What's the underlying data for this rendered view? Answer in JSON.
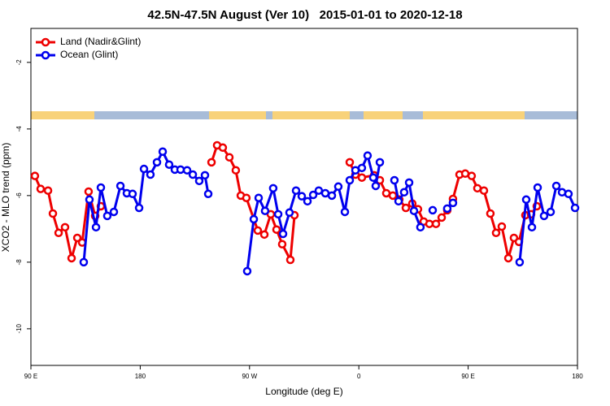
{
  "chart_data": {
    "type": "line",
    "title": "42.5N-47.5N August (Ver 10)   2015-01-01 to 2020-12-18",
    "x_label": "Longitude (deg E)",
    "y_label": "XCO2 - MLO trend (ppm)",
    "xlim": [
      90,
      540
    ],
    "ylim": [
      -11.1,
      -0.98
    ],
    "xticks": [
      {
        "value": 90,
        "label": "90 E"
      },
      180,
      {
        "value": 270,
        "label": "90 W"
      },
      {
        "value": 360,
        "label": "0"
      },
      {
        "value": 450,
        "label": "90 E"
      },
      {
        "value": 540,
        "label": "180"
      }
    ],
    "yticks": [
      -2,
      -4,
      -6,
      -8,
      -10
    ],
    "legend": "top-left",
    "series": [
      {
        "name": "Land (Nadir&Glint)",
        "color": "#ee0000",
        "x": [
          93.3,
          98.0,
          104.1,
          108.1,
          112.8,
          118.1,
          123.5,
          128.2,
          132.2,
          137.5,
          142.9,
          147.6,
          null,
          238.7,
          243.3,
          248.0,
          253.4,
          258.7,
          262.8,
          267.4,
          276.8,
          282.2,
          287.5,
          292.2,
          296.9,
          303.6,
          307.0,
          null,
          352.5,
          357.2,
          362.5,
          372.6,
          377.3,
          382.6,
          388.0,
          393.3,
          398.7,
          404.0,
          408.7,
          413.4,
          418.1,
          423.5,
          428.2,
          432.8,
          437.5,
          442.9,
          447.6,
          452.9,
          457.6,
          463.0,
          468.3,
          473.0,
          477.7,
          483.1,
          487.7,
          491.8,
          497.1,
          501.8,
          506.5
        ],
        "values": [
          -5.41,
          -5.8,
          -5.85,
          -6.54,
          -7.12,
          -6.95,
          -7.88,
          -7.27,
          -7.41,
          -5.88,
          -6.61,
          -6.32,
          null,
          -5.0,
          -4.49,
          -4.56,
          -4.85,
          -5.24,
          -6.0,
          -6.07,
          -7.05,
          -7.17,
          -6.56,
          -7.02,
          -7.46,
          -7.93,
          -6.59,
          null,
          -5.0,
          -5.37,
          -5.46,
          -5.39,
          -5.54,
          -5.93,
          -6.0,
          -6.12,
          -6.37,
          -6.24,
          -6.41,
          -6.78,
          -6.85,
          -6.85,
          -6.66,
          -6.44,
          -6.1,
          -5.37,
          -5.34,
          -5.41,
          -5.78,
          -5.85,
          -6.54,
          -7.12,
          -6.93,
          -7.88,
          -7.27,
          -7.39,
          -6.59,
          -6.56,
          -6.32
        ]
      },
      {
        "name": "Ocean (Glint)",
        "color": "#0000ee",
        "x": [
          133.5,
          138.2,
          143.6,
          147.6,
          152.9,
          158.3,
          163.7,
          169.0,
          173.7,
          179.1,
          183.1,
          188.4,
          193.8,
          198.5,
          203.8,
          208.5,
          213.2,
          218.6,
          223.3,
          228.6,
          233.3,
          236.0,
          null,
          268.1,
          273.5,
          277.5,
          282.8,
          289.5,
          293.6,
          297.6,
          302.9,
          308.3,
          313.0,
          317.7,
          322.4,
          327.0,
          332.4,
          337.8,
          343.1,
          348.5,
          352.5,
          357.2,
          362.5,
          367.2,
          371.9,
          373.9,
          377.3,
          null,
          389.3,
          392.7,
          397.3,
          401.4,
          405.4,
          410.7,
          null,
          420.8,
          null,
          432.8,
          437.5,
          null,
          492.4,
          497.8,
          502.5,
          507.2,
          512.5,
          517.9,
          522.6,
          527.3,
          532.6,
          538.0
        ],
        "values": [
          -8.0,
          -6.12,
          -6.95,
          -5.76,
          -6.61,
          -6.49,
          -5.71,
          -5.93,
          -5.95,
          -6.37,
          -5.2,
          -5.37,
          -5.0,
          -4.68,
          -5.07,
          -5.22,
          -5.22,
          -5.24,
          -5.37,
          -5.56,
          -5.39,
          -5.95,
          null,
          -8.27,
          -6.71,
          -6.07,
          -6.46,
          -5.78,
          -6.56,
          -7.15,
          -6.51,
          -5.85,
          -6.02,
          -6.17,
          -5.98,
          -5.85,
          -5.93,
          -6.0,
          -5.73,
          -6.49,
          -5.54,
          -5.24,
          -5.17,
          -4.8,
          -5.46,
          -5.71,
          -5.0,
          null,
          -5.54,
          -6.17,
          -5.9,
          -5.61,
          -6.46,
          -6.95,
          null,
          -6.44,
          null,
          -6.39,
          -6.22,
          null,
          -8.0,
          -6.12,
          -6.95,
          -5.76,
          -6.61,
          -6.49,
          -5.71,
          -5.9,
          -5.95,
          -6.37
        ]
      }
    ]
  }
}
